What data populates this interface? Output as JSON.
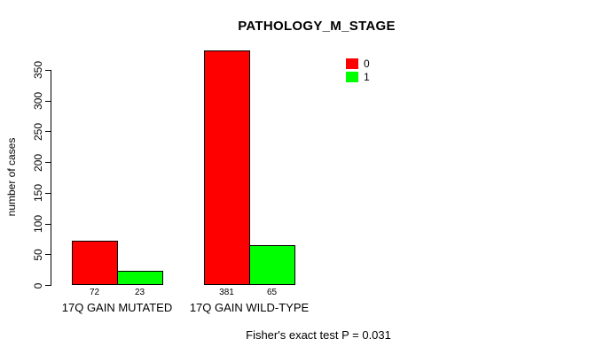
{
  "chart_data": {
    "type": "bar",
    "title": "PATHOLOGY_M_STAGE",
    "xlabel": "",
    "ylabel": "number of cases",
    "categories": [
      "17Q GAIN MUTATED",
      "17Q GAIN WILD-TYPE"
    ],
    "series": [
      {
        "name": "0",
        "color": "#ff0000",
        "values": [
          72,
          381
        ]
      },
      {
        "name": "1",
        "color": "#00ff00",
        "values": [
          23,
          65
        ]
      }
    ],
    "bar_value_labels": [
      [
        "72",
        "23"
      ],
      [
        "381",
        "65"
      ]
    ],
    "ylim": [
      0,
      350
    ],
    "yticks": [
      0,
      50,
      100,
      150,
      200,
      250,
      300,
      350
    ],
    "grid": false,
    "legend_position": "top-right",
    "legend": [
      {
        "label": "0",
        "color": "#ff0000"
      },
      {
        "label": "1",
        "color": "#00ff00"
      }
    ],
    "footnote": "Fisher's exact test P = 0.031",
    "colors": {
      "background": "#ffffff",
      "axis": "#000000",
      "bar_border": "#000000"
    }
  }
}
